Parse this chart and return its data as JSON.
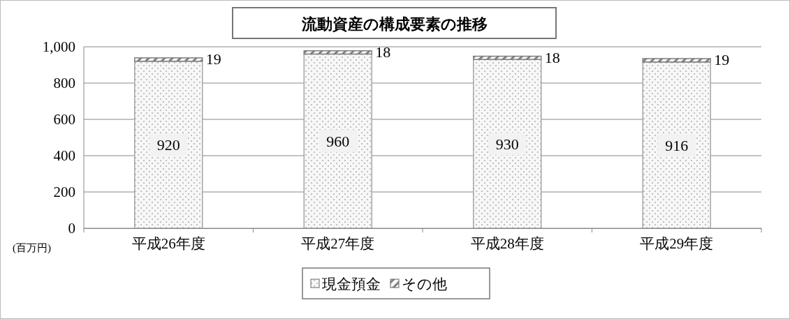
{
  "chart_data": {
    "type": "bar",
    "title": "流動資産の構成要素の推移",
    "ylabel": "(百万円)",
    "categories": [
      "平成26年度",
      "平成27年度",
      "平成28年度",
      "平成29年度"
    ],
    "series": [
      {
        "name": "現金預金",
        "color": "#a6a6a6",
        "values": [
          920,
          960,
          930,
          916
        ]
      },
      {
        "name": "その他",
        "color": "#808080",
        "values": [
          19,
          18,
          18,
          19
        ]
      }
    ],
    "stacked": true,
    "ylim": [
      0,
      1000
    ],
    "yticks": [
      0,
      200,
      400,
      600,
      800,
      {
        "value": 1000,
        "label": "1,000"
      }
    ],
    "grid": "y",
    "legend": "bottom",
    "data_labels": true
  }
}
